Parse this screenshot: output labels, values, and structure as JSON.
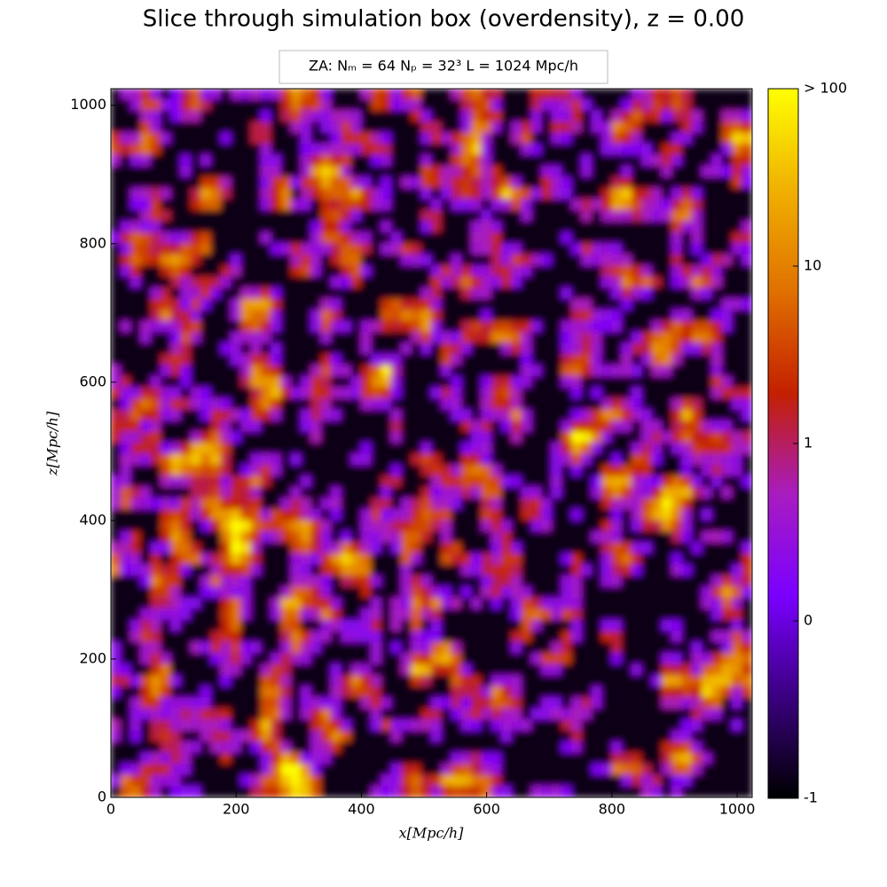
{
  "chart_data": {
    "type": "heatmap",
    "title": "Slice through simulation box (overdensity), z = 0.00",
    "subtitle": "ZA:  Nₘ = 64   Nₚ = 32³   L = 1024 Mpc/h",
    "xlabel": "x[Mpc/h]",
    "ylabel": "z[Mpc/h]",
    "xlim": [
      0,
      1024
    ],
    "ylim": [
      0,
      1024
    ],
    "xticks": [
      0,
      200,
      400,
      600,
      800,
      1000
    ],
    "yticks": [
      0,
      200,
      400,
      600,
      800,
      1000
    ],
    "colormap": [
      "#000000",
      "#3a0080",
      "#7a00ff",
      "#a81cc0",
      "#c42000",
      "#e07000",
      "#f0b000",
      "#ffff00"
    ],
    "colorbar": {
      "scale": "symlog",
      "linthresh": 1,
      "lim": [
        -1,
        100
      ],
      "ticks": [
        -1,
        0,
        1,
        10,
        {
          "value": 100,
          "label": "> 100"
        }
      ]
    }
  }
}
